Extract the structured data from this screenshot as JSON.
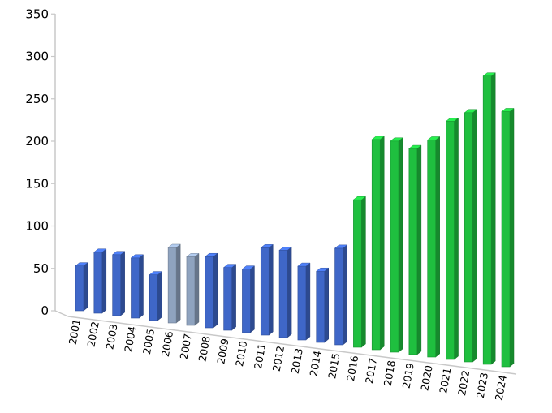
{
  "chart_data": {
    "type": "bar",
    "title": "",
    "xlabel": "",
    "ylabel": "",
    "ylim": [
      0,
      350
    ],
    "yticks": [
      0,
      50,
      100,
      150,
      200,
      250,
      300,
      350
    ],
    "grid": false,
    "legend": "none",
    "categories": [
      "2001",
      "2002",
      "2003",
      "2004",
      "2005",
      "2006",
      "2007",
      "2008",
      "2009",
      "2010",
      "2011",
      "2012",
      "2013",
      "2014",
      "2015",
      "2016",
      "2017",
      "2018",
      "2019",
      "2020",
      "2021",
      "2022",
      "2023",
      "2024"
    ],
    "values": [
      53,
      72,
      72,
      71,
      54,
      89,
      81,
      84,
      74,
      75,
      103,
      103,
      87,
      84,
      114,
      174,
      248,
      249,
      243,
      256,
      281,
      294,
      340,
      301
    ],
    "bar_colors": [
      "#3f67c8",
      "#3f67c8",
      "#3f67c8",
      "#3f67c8",
      "#3f67c8",
      "#8fa3bf",
      "#8fa3bf",
      "#3f67c8",
      "#3f67c8",
      "#3f67c8",
      "#3f67c8",
      "#3f67c8",
      "#3f67c8",
      "#3f67c8",
      "#3f67c8",
      "#1fbf3f",
      "#1fbf3f",
      "#1fbf3f",
      "#1fbf3f",
      "#1fbf3f",
      "#1fbf3f",
      "#1fbf3f",
      "#1fbf3f",
      "#1fbf3f"
    ]
  }
}
